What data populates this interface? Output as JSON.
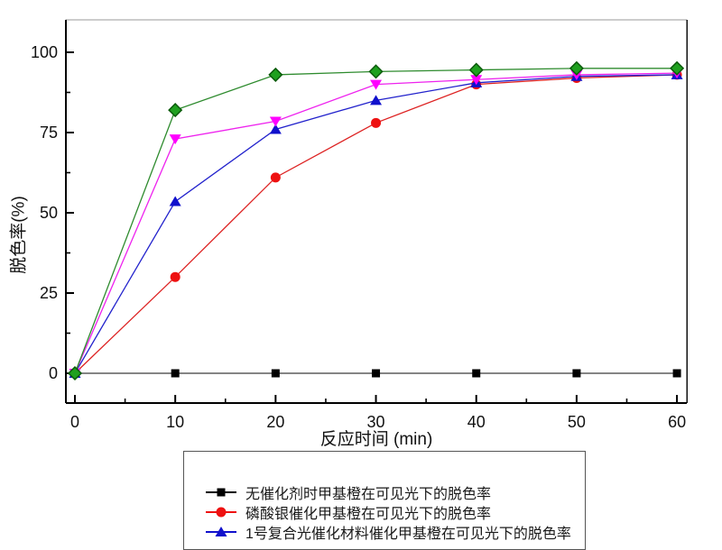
{
  "page": {
    "background": "#ffffff"
  },
  "chart_data": {
    "type": "line",
    "title": "",
    "xlabel": "反应时间 (min)",
    "ylabel": "脱色率(%)",
    "x": [
      0,
      10,
      20,
      30,
      40,
      50,
      60
    ],
    "xlim": [
      -0.9,
      61.2
    ],
    "ylim": [
      -9.3,
      110.2
    ],
    "x_major_ticks": [
      0,
      10,
      20,
      30,
      40,
      50,
      60
    ],
    "x_minor_ticks": [
      5,
      15,
      25,
      35,
      45,
      55
    ],
    "y_major_ticks": [
      0,
      25,
      50,
      75,
      100
    ],
    "y_minor_ticks": [
      12.5,
      37.5,
      62.5,
      87.5
    ],
    "grid": false,
    "legend_position": "bottom-outside",
    "frame_colors": {
      "left": "#000000",
      "bottom": "#000000",
      "right": "#111111",
      "top": "#999999"
    },
    "series": [
      {
        "name": "无催化剂时甲基橙在可见光下的脱色率",
        "marker": "square",
        "color": "#000000",
        "line_color": "#3a3a3a",
        "values": [
          0,
          0,
          0,
          0,
          0,
          0,
          0
        ]
      },
      {
        "name": "磷酸银催化甲基橙在可见光下的脱色率",
        "marker": "circle",
        "color": "#ee1111",
        "line_color": "#dd2222",
        "values": [
          0,
          30,
          61,
          78,
          90,
          92,
          93
        ]
      },
      {
        "name": "1号复合光催化材料催化甲基橙在可见光下的脱色率",
        "marker": "triangle-up",
        "color": "#1010cc",
        "line_color": "#2222cc",
        "values": [
          0,
          53.5,
          76,
          85,
          90.5,
          92.5,
          93
        ]
      },
      {
        "name": "",
        "marker": "triangle-down",
        "color": "#ff00ff",
        "line_color": "#ee22ee",
        "values": [
          0,
          73,
          78.5,
          90,
          91.5,
          93,
          93.5
        ]
      },
      {
        "name": "",
        "marker": "diamond",
        "color": "#1fa01f",
        "edge_color": "#0a5a0a",
        "line_color": "#2e8b2e",
        "values": [
          0,
          82,
          93,
          94,
          94.5,
          95,
          95
        ]
      }
    ]
  },
  "legend": {
    "entries": [
      {
        "label": "无催化剂时甲基橙在可见光下的脱色率",
        "marker": "square",
        "color": "#000000"
      },
      {
        "label": "磷酸银催化甲基橙在可见光下的脱色率",
        "marker": "circle",
        "color": "#ee1111"
      },
      {
        "label": "1号复合光催化材料催化甲基橙在可见光下的脱色率",
        "marker": "triangle-up",
        "color": "#1010cc"
      }
    ]
  }
}
